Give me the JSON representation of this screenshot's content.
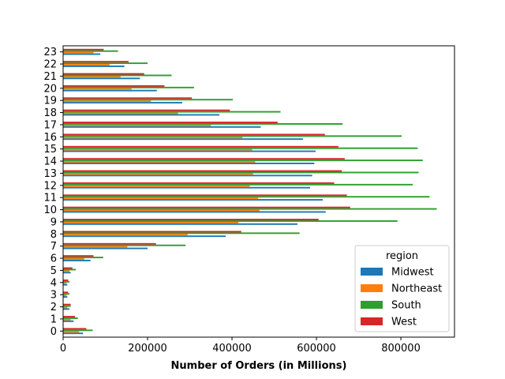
{
  "chart_data": {
    "type": "bar",
    "orientation": "horizontal",
    "xlabel": "Number of Orders (in Millions)",
    "xlim": [
      0,
      927000
    ],
    "xticks": [
      0,
      200000,
      400000,
      600000,
      800000
    ],
    "categories": [
      "0",
      "1",
      "2",
      "3",
      "4",
      "5",
      "6",
      "7",
      "8",
      "9",
      "10",
      "11",
      "12",
      "13",
      "14",
      "15",
      "16",
      "17",
      "18",
      "19",
      "20",
      "21",
      "22",
      "23"
    ],
    "legend": {
      "title": "region",
      "position": "lower right"
    },
    "grid": false,
    "series": [
      {
        "name": "Midwest",
        "color": "#1f77b4",
        "values": [
          47000,
          25000,
          15000,
          10000,
          10000,
          18000,
          65000,
          200000,
          385000,
          555000,
          622000,
          615000,
          585000,
          590000,
          595000,
          598000,
          568000,
          468000,
          370000,
          282000,
          222000,
          182000,
          145000,
          88000
        ]
      },
      {
        "name": "Northeast",
        "color": "#ff7f0e",
        "values": [
          38000,
          18000,
          10000,
          8000,
          8000,
          15000,
          50000,
          152000,
          295000,
          415000,
          465000,
          462000,
          442000,
          450000,
          455000,
          448000,
          425000,
          350000,
          272000,
          208000,
          162000,
          136000,
          110000,
          72000
        ]
      },
      {
        "name": "South",
        "color": "#2ca02c",
        "values": [
          70000,
          35000,
          18000,
          15000,
          15000,
          30000,
          95000,
          290000,
          560000,
          792000,
          885000,
          868000,
          828000,
          842000,
          852000,
          840000,
          802000,
          662000,
          515000,
          402000,
          310000,
          257000,
          200000,
          130000
        ]
      },
      {
        "name": "West",
        "color": "#d62728",
        "values": [
          55000,
          28000,
          18000,
          12000,
          12000,
          22000,
          72000,
          220000,
          422000,
          605000,
          680000,
          672000,
          642000,
          660000,
          667000,
          652000,
          620000,
          508000,
          395000,
          305000,
          240000,
          192000,
          155000,
          96000
        ]
      }
    ]
  }
}
